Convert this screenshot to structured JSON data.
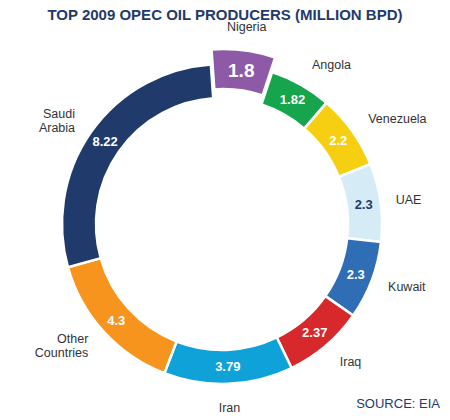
{
  "chart_data": {
    "type": "donut",
    "title": "TOP 2009 OPEC OIL PRODUCERS (MILLION BPD)",
    "source": "SOURCE: EIA",
    "categories": [
      "Nigeria",
      "Angola",
      "Venezuela",
      "UAE",
      "Kuwait",
      "Iraq",
      "Iran",
      "Other Countries",
      "Saudi Arabia"
    ],
    "values": [
      1.8,
      1.82,
      2.2,
      2.3,
      2.3,
      2.37,
      3.79,
      4.3,
      8.22
    ],
    "colors": [
      "#8e5aa8",
      "#16a54c",
      "#f6cf12",
      "#d5ebf6",
      "#2f6db5",
      "#d7282c",
      "#0ea2d8",
      "#f7941e",
      "#1f3a6b"
    ],
    "data_labels": true
  }
}
